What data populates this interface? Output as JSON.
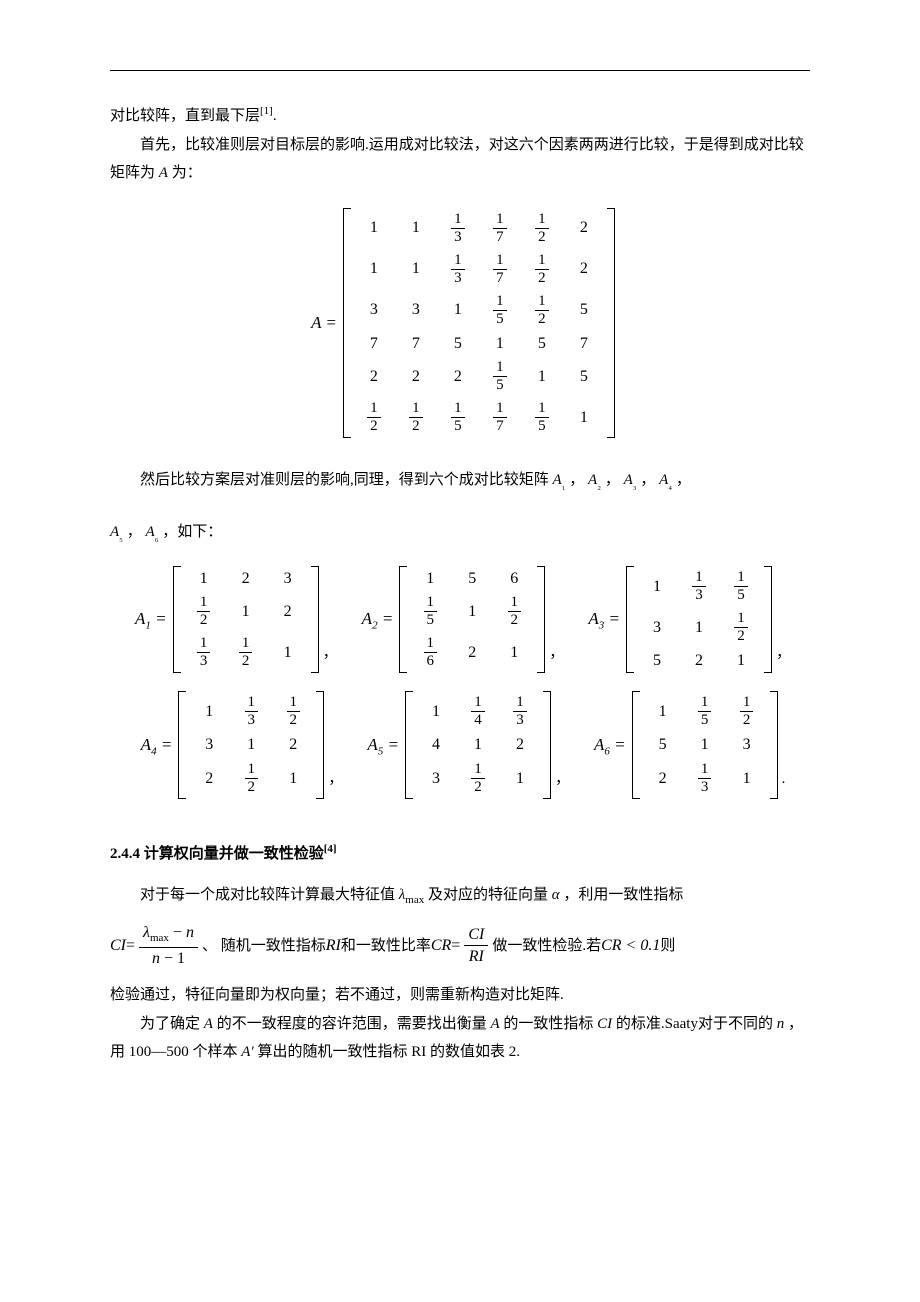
{
  "para1": "对比较阵，直到最下层",
  "cite1": "[1]",
  "para1b": ".",
  "para2a": "首先，比较准则层对目标层的影响.运用成对比较法，对这六个因素两两进行比较，于是得到成对比较矩阵为 ",
  "para2A": "A",
  "para2b": " 为：",
  "mainMatrixLabel": "A =",
  "mainMatrix": [
    [
      "1",
      "1",
      "1/3",
      "1/7",
      "1/2",
      "2"
    ],
    [
      "1",
      "1",
      "1/3",
      "1/7",
      "1/2",
      "2"
    ],
    [
      "3",
      "3",
      "1",
      "1/5",
      "1/2",
      "5"
    ],
    [
      "7",
      "7",
      "5",
      "1",
      "5",
      "7"
    ],
    [
      "2",
      "2",
      "2",
      "1/5",
      "1",
      "5"
    ],
    [
      "1/2",
      "1/2",
      "1/5",
      "1/7",
      "1/5",
      "1"
    ]
  ],
  "para3a": "然后比较方案层对准则层的影响,同理，得到六个成对比较矩阵 ",
  "para3list": [
    "A₁",
    "A₂",
    "A₃",
    "A₄",
    "A₅",
    "A₆"
  ],
  "para3b": "，如下：",
  "smallMatrices": {
    "row1": [
      {
        "label": "A",
        "sub": "1",
        "data": [
          [
            "1",
            "2",
            "3"
          ],
          [
            "1/2",
            "1",
            "2"
          ],
          [
            "1/3",
            "1/2",
            "1"
          ]
        ]
      },
      {
        "label": "A",
        "sub": "2",
        "data": [
          [
            "1",
            "5",
            "6"
          ],
          [
            "1/5",
            "1",
            "1/2"
          ],
          [
            "1/6",
            "2",
            "1"
          ]
        ]
      },
      {
        "label": "A",
        "sub": "3",
        "data": [
          [
            "1",
            "1/3",
            "1/5"
          ],
          [
            "3",
            "1",
            "1/2"
          ],
          [
            "5",
            "2",
            "1"
          ]
        ]
      }
    ],
    "row2": [
      {
        "label": "A",
        "sub": "4",
        "data": [
          [
            "1",
            "1/3",
            "1/2"
          ],
          [
            "3",
            "1",
            "2"
          ],
          [
            "2",
            "1/2",
            "1"
          ]
        ]
      },
      {
        "label": "A",
        "sub": "5",
        "data": [
          [
            "1",
            "1/4",
            "1/3"
          ],
          [
            "4",
            "1",
            "2"
          ],
          [
            "3",
            "1/2",
            "1"
          ]
        ]
      },
      {
        "label": "A",
        "sub": "6",
        "data": [
          [
            "1",
            "1/5",
            "1/2"
          ],
          [
            "5",
            "1",
            "3"
          ],
          [
            "2",
            "1/3",
            "1"
          ]
        ]
      }
    ]
  },
  "sectionNum": "2.4.4 ",
  "sectionTitle": "计算权向量并做一致性检验",
  "cite4": "[4]",
  "para4a": "对于每一个成对比较阵计算最大特征值 ",
  "lambdaMax": "λ",
  "lambdaSub": "max",
  "para4b": " 及对应的特征向量 ",
  "alpha": "α",
  "para4c": " ，利用一致性指标",
  "formula": {
    "CI": "CI",
    "eq": " = ",
    "num": "λ_max − n",
    "den": "n − 1",
    "mid1": "、 随机一致性指标 ",
    "RI": "RI",
    "mid2": " 和一致性比率 ",
    "CR": "CR",
    "num2": "CI",
    "den2": "RI",
    "tail": " 做一致性检验.若 ",
    "cond": "CR < 0.1",
    "tail2": " 则"
  },
  "para5": "检验通过，特征向量即为权向量；若不通过，则需重新构造对比矩阵.",
  "para6a": "为了确定 ",
  "para6A": "A",
  "para6b": " 的不一致程度的容许范围，需要找出衡量 ",
  "para6c": " 的一致性指标 ",
  "para6CI": "CI",
  "para6d": " 的标准.Saaty对于不同的 ",
  "para6n": "n",
  "para6e": " ，用 100—500 个样本 ",
  "para6Ap": "A′",
  "para6f": " 算出的随机一致性指标 RI 的数值如表 2."
}
